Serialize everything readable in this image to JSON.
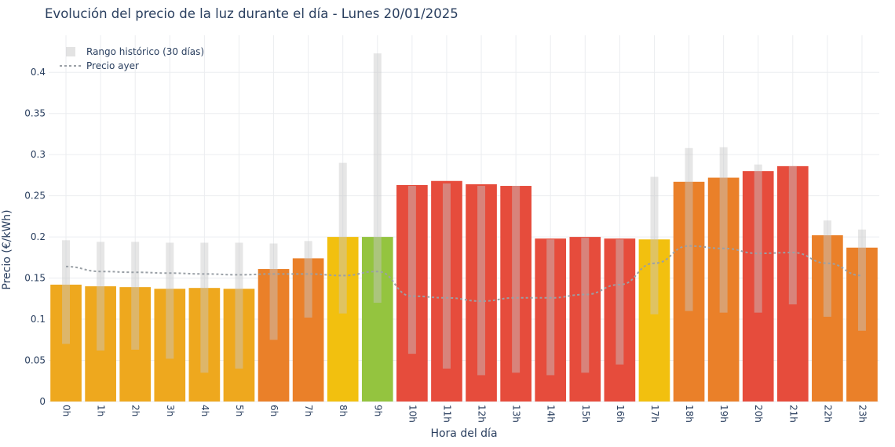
{
  "chart_data": {
    "type": "bar",
    "title": "Evolución del precio de la luz durante el día - Lunes 20/01/2025",
    "xlabel": "Hora del día",
    "ylabel": "Precio (€/kWh)",
    "ylim": [
      0,
      0.445
    ],
    "yticks": [
      "0",
      "0.05",
      "0.1",
      "0.15",
      "0.2",
      "0.25",
      "0.3",
      "0.35",
      "0.4"
    ],
    "categories": [
      "0h",
      "1h",
      "2h",
      "3h",
      "4h",
      "5h",
      "6h",
      "7h",
      "8h",
      "9h",
      "10h",
      "11h",
      "12h",
      "13h",
      "14h",
      "15h",
      "16h",
      "17h",
      "18h",
      "19h",
      "20h",
      "21h",
      "22h",
      "23h"
    ],
    "series": [
      {
        "values": [
          0.142,
          0.14,
          0.139,
          0.137,
          0.138,
          0.137,
          0.161,
          0.174,
          0.2,
          0.2,
          0.263,
          0.268,
          0.264,
          0.262,
          0.198,
          0.2,
          0.198,
          0.197,
          0.267,
          0.272,
          0.28,
          0.286,
          0.202,
          0.187
        ],
        "colors": [
          "#eea81e",
          "#eea81e",
          "#eea81e",
          "#eea81e",
          "#eea81e",
          "#eea81e",
          "#ea8029",
          "#ea8029",
          "#f2c00f",
          "#94c43f",
          "#e64c3c",
          "#e64c3c",
          "#e64c3c",
          "#e64c3c",
          "#e64c3c",
          "#e64c3c",
          "#e64c3c",
          "#f2c00f",
          "#ea8029",
          "#ea8029",
          "#e64c3c",
          "#e64c3c",
          "#ea8029",
          "#ea8029"
        ]
      },
      {
        "name": "Rango histórico (30 días)",
        "type": "range",
        "low": [
          0.07,
          0.062,
          0.063,
          0.052,
          0.035,
          0.04,
          0.075,
          0.102,
          0.107,
          0.12,
          0.058,
          0.04,
          0.032,
          0.035,
          0.032,
          0.035,
          0.045,
          0.106,
          0.11,
          0.108,
          0.108,
          0.118,
          0.103,
          0.086
        ],
        "high": [
          0.196,
          0.194,
          0.194,
          0.193,
          0.193,
          0.193,
          0.192,
          0.195,
          0.29,
          0.423,
          0.262,
          0.265,
          0.262,
          0.262,
          0.197,
          0.199,
          0.197,
          0.273,
          0.308,
          0.309,
          0.288,
          0.286,
          0.22,
          0.209
        ],
        "color": "#c8c8c8"
      },
      {
        "name": "Precio ayer",
        "type": "line",
        "values": [
          0.164,
          0.158,
          0.157,
          0.156,
          0.155,
          0.154,
          0.155,
          0.155,
          0.153,
          0.158,
          0.128,
          0.126,
          0.122,
          0.126,
          0.126,
          0.13,
          0.142,
          0.168,
          0.189,
          0.186,
          0.18,
          0.181,
          0.168,
          0.153
        ],
        "color": "#9aa0a6"
      }
    ],
    "legend_position": "top-left",
    "grid": true
  }
}
